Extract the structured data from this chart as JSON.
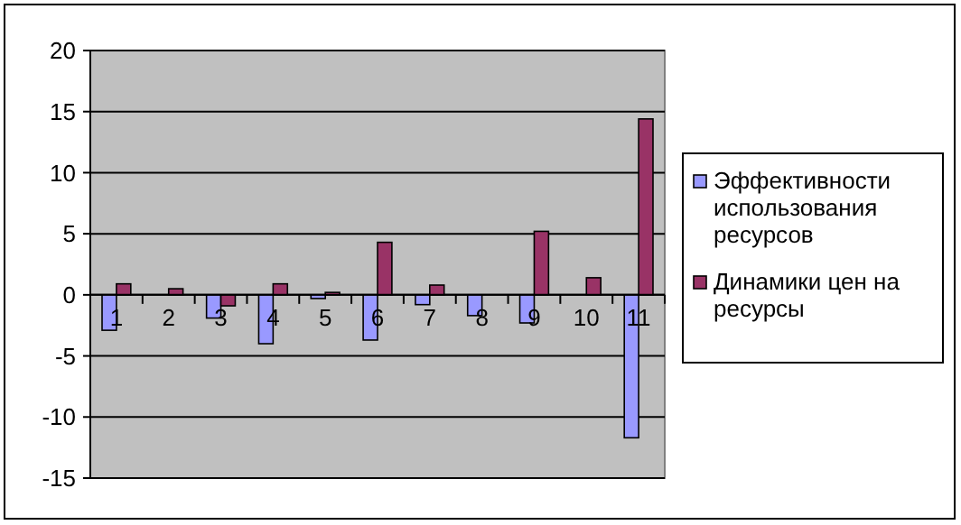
{
  "chart_data": {
    "type": "bar",
    "categories": [
      "1",
      "2",
      "3",
      "4",
      "5",
      "6",
      "7",
      "8",
      "9",
      "10",
      "11"
    ],
    "series": [
      {
        "name": "Эффективности использования ресурсов",
        "color": "#9999ff",
        "values": [
          -2.9,
          0,
          -1.9,
          -4.0,
          -0.3,
          -3.7,
          -0.8,
          -1.7,
          -2.3,
          0,
          -11.7
        ]
      },
      {
        "name": "Динамики цен на ресурсы",
        "color": "#993366",
        "values": [
          0.9,
          0.5,
          -0.9,
          0.9,
          0.2,
          4.3,
          0.8,
          0,
          5.2,
          1.4,
          14.4
        ]
      }
    ],
    "ylim": [
      -15,
      20
    ],
    "yticks": [
      -15,
      -10,
      -5,
      0,
      5,
      10,
      15,
      20
    ],
    "grid": "y",
    "legend": "right"
  }
}
